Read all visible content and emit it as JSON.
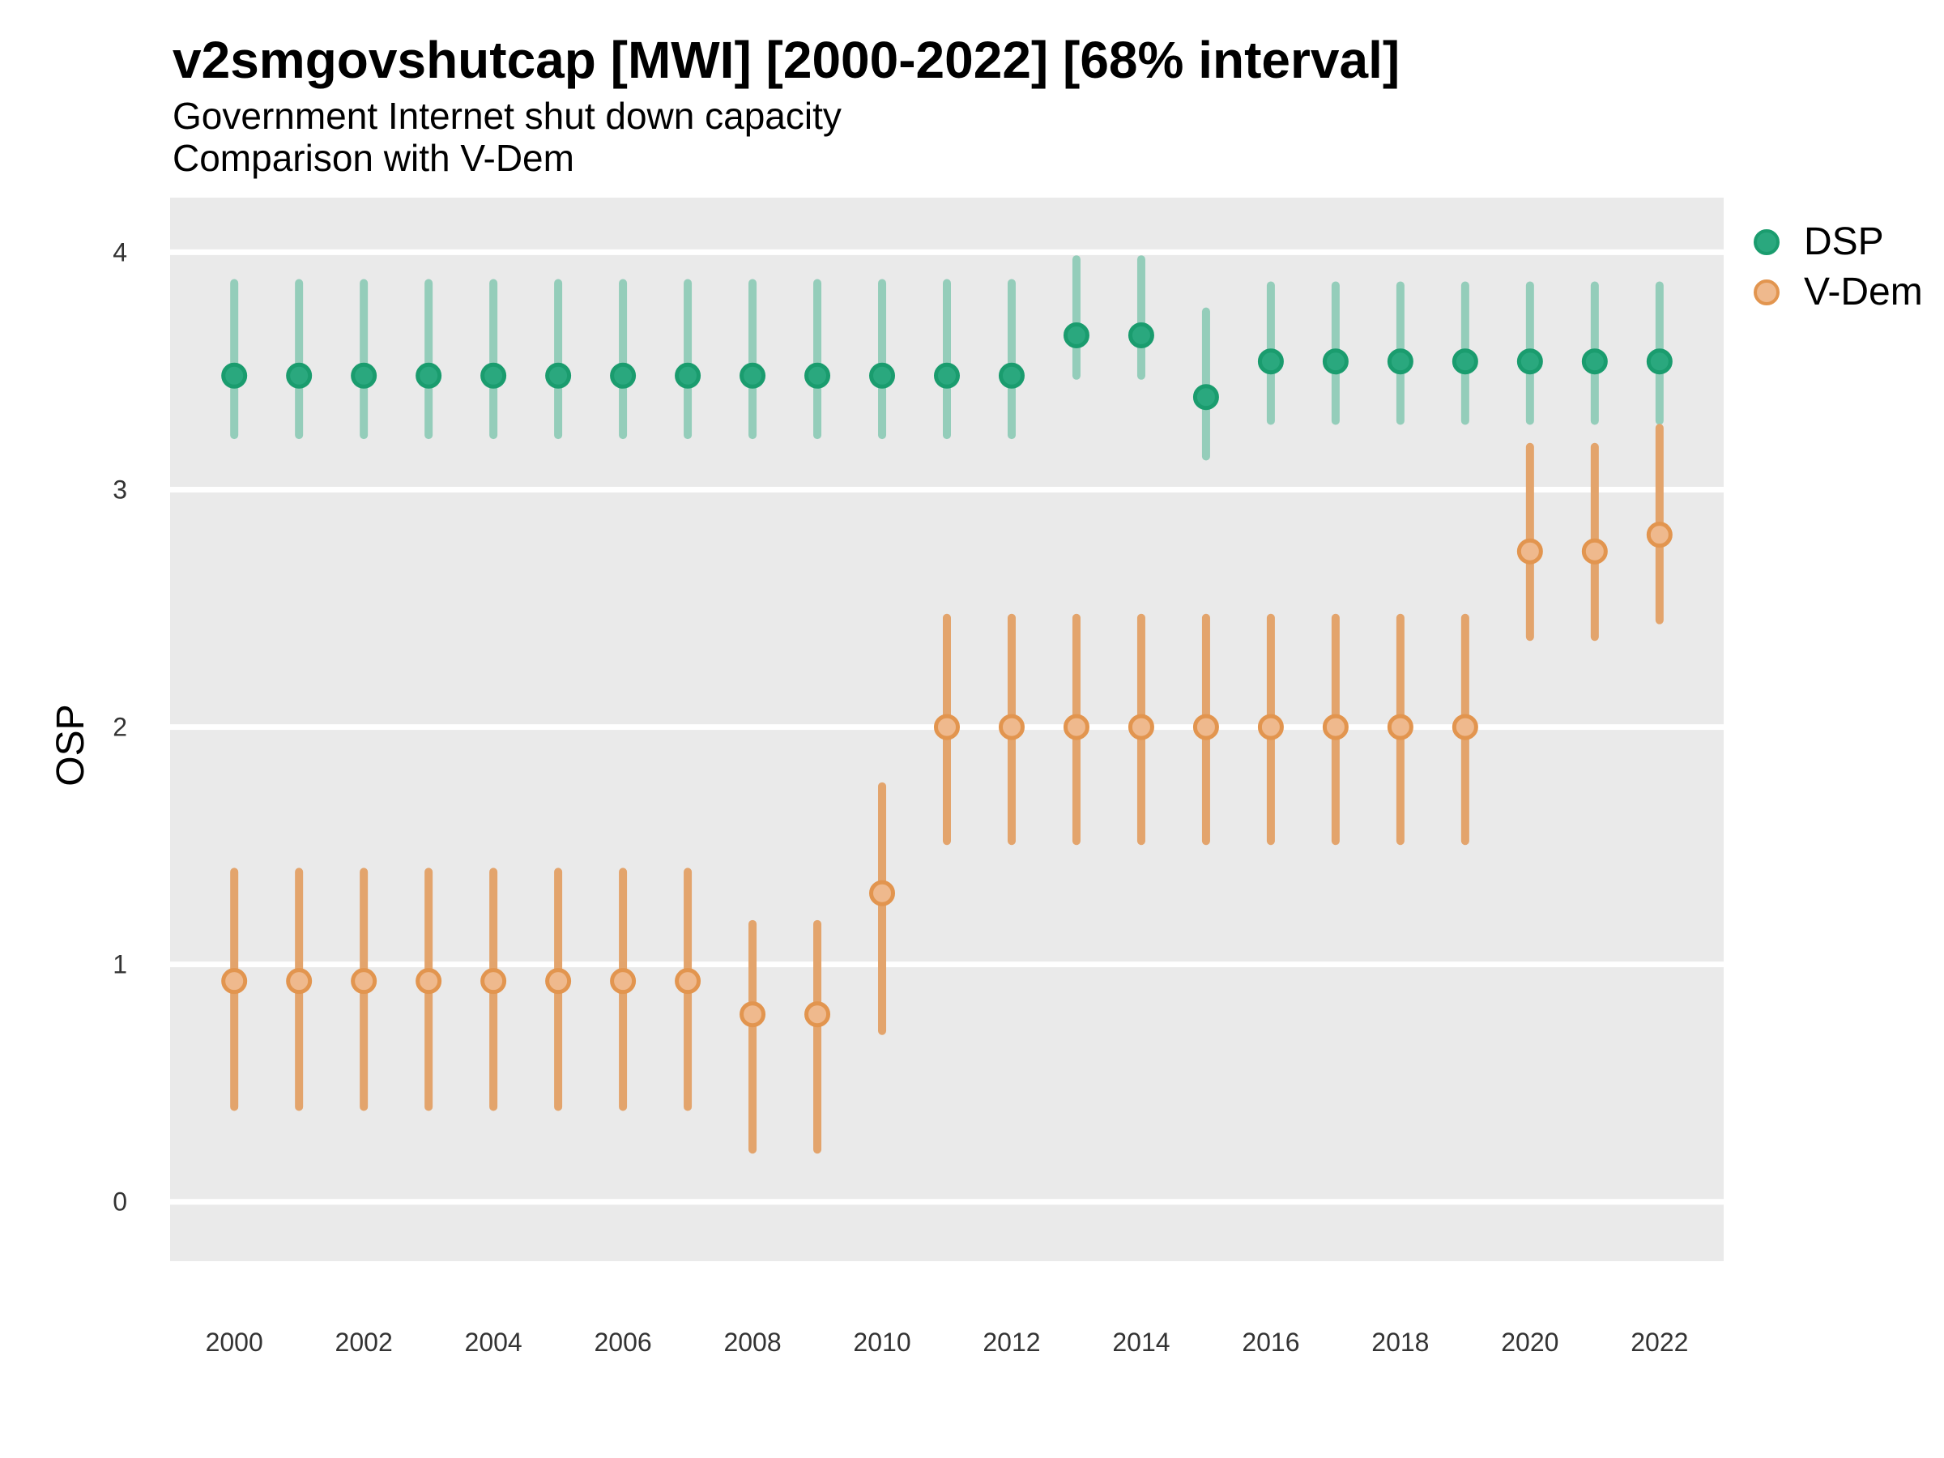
{
  "header": {
    "title": "v2smgovshutcap [MWI] [2000-2022] [68% interval]",
    "subtitle1": "Government Internet shut down capacity",
    "subtitle2": "Comparison with V-Dem"
  },
  "legend": {
    "position": "right",
    "items": [
      {
        "label": "DSP"
      },
      {
        "label": "V-Dem"
      }
    ]
  },
  "chart_data": {
    "type": "pointrange",
    "title": "v2smgovshutcap [MWI] [2000-2022] [68% interval]",
    "subtitle": "Government Internet shut down capacity / Comparison with V-Dem",
    "interval": "68%",
    "xlabel": "",
    "ylabel": "OSP",
    "x": [
      2000,
      2001,
      2002,
      2003,
      2004,
      2005,
      2006,
      2007,
      2008,
      2009,
      2010,
      2011,
      2012,
      2013,
      2014,
      2015,
      2016,
      2017,
      2018,
      2019,
      2020,
      2021,
      2022
    ],
    "x_ticks": [
      2000,
      2002,
      2004,
      2006,
      2008,
      2010,
      2012,
      2014,
      2016,
      2018,
      2020,
      2022
    ],
    "y_ticks": [
      0,
      1,
      2,
      3,
      4
    ],
    "xlim": [
      1999.01,
      2022.99
    ],
    "ylim": [
      -0.25,
      4.23
    ],
    "grid": "major horizontal white lines on gray panel",
    "legend_position": "right",
    "colors": {
      "panel_bg": "#eaeaea",
      "grid_line": "#ffffff",
      "tick_text": "#333333",
      "text": "#000000",
      "background": "#ffffff"
    },
    "series": [
      {
        "name": "DSP",
        "point_color": "#2aa87e",
        "point_stroke": "#1a9c6e",
        "bar_color": "#94cdba",
        "center": [
          3.48,
          3.48,
          3.48,
          3.48,
          3.48,
          3.48,
          3.48,
          3.48,
          3.48,
          3.48,
          3.48,
          3.48,
          3.48,
          3.65,
          3.65,
          3.39,
          3.54,
          3.54,
          3.54,
          3.54,
          3.54,
          3.54,
          3.54
        ],
        "lower": [
          3.23,
          3.23,
          3.23,
          3.23,
          3.23,
          3.23,
          3.23,
          3.23,
          3.23,
          3.23,
          3.23,
          3.23,
          3.23,
          3.48,
          3.48,
          3.14,
          3.29,
          3.29,
          3.29,
          3.29,
          3.29,
          3.29,
          3.29
        ],
        "upper": [
          3.87,
          3.87,
          3.87,
          3.87,
          3.87,
          3.87,
          3.87,
          3.87,
          3.87,
          3.87,
          3.87,
          3.87,
          3.87,
          3.97,
          3.97,
          3.75,
          3.86,
          3.86,
          3.86,
          3.86,
          3.86,
          3.86,
          3.86
        ]
      },
      {
        "name": "V-Dem",
        "point_color": "#efb98d",
        "point_stroke": "#e2954f",
        "bar_color": "#e3a46c",
        "center": [
          0.93,
          0.93,
          0.93,
          0.93,
          0.93,
          0.93,
          0.93,
          0.93,
          0.79,
          0.79,
          1.3,
          2.0,
          2.0,
          2.0,
          2.0,
          2.0,
          2.0,
          2.0,
          2.0,
          2.0,
          2.74,
          2.74,
          2.81
        ],
        "lower": [
          0.4,
          0.4,
          0.4,
          0.4,
          0.4,
          0.4,
          0.4,
          0.4,
          0.22,
          0.22,
          0.72,
          1.52,
          1.52,
          1.52,
          1.52,
          1.52,
          1.52,
          1.52,
          1.52,
          1.52,
          2.38,
          2.38,
          2.45
        ],
        "upper": [
          1.39,
          1.39,
          1.39,
          1.39,
          1.39,
          1.39,
          1.39,
          1.39,
          1.17,
          1.17,
          1.75,
          2.46,
          2.46,
          2.46,
          2.46,
          2.46,
          2.46,
          2.46,
          2.46,
          2.46,
          3.18,
          3.18,
          3.26
        ]
      }
    ]
  }
}
